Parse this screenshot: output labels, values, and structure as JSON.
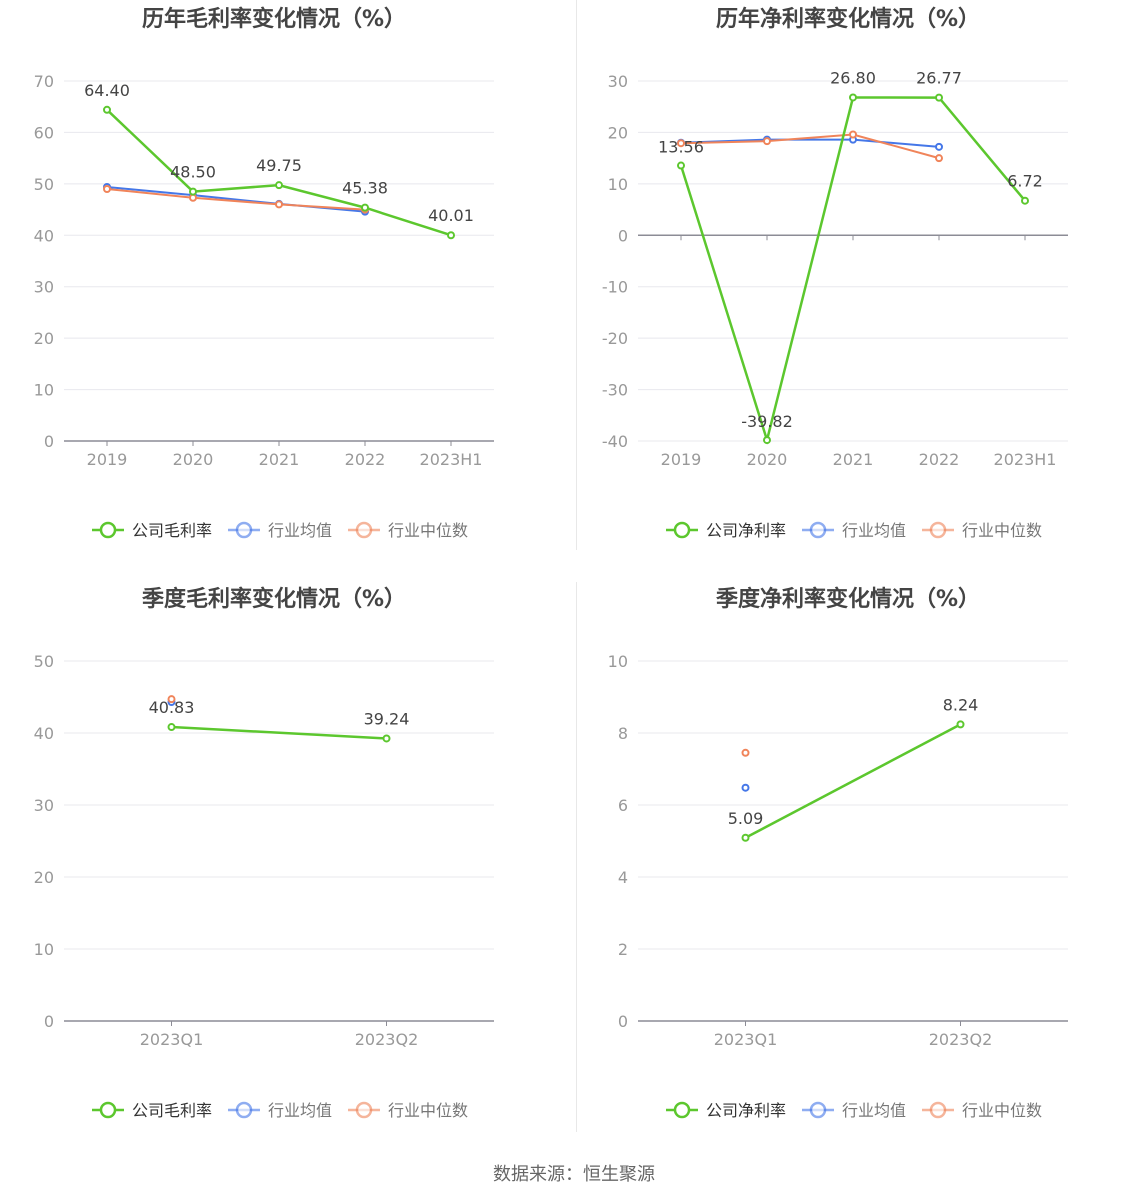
{
  "source_text": "数据来源：恒生聚源",
  "colors": {
    "company": "#5cc72e",
    "avg": "#4577e8",
    "median": "#f0845a",
    "grid": "#e8e8ee",
    "axis": "#8c8c96",
    "tick": "#999999",
    "label": "#444444",
    "title": "#444444"
  },
  "chart_data": [
    {
      "type": "line",
      "title": "历年毛利率变化情况（%）",
      "categories": [
        "2019",
        "2020",
        "2021",
        "2022",
        "2023H1"
      ],
      "ylim": [
        0,
        70
      ],
      "yticks": [
        0,
        10,
        20,
        30,
        40,
        50,
        60,
        70
      ],
      "legend_position": "bottom",
      "series": [
        {
          "name": "公司毛利率",
          "key": "company",
          "values": [
            64.4,
            48.5,
            49.75,
            45.38,
            40.01
          ],
          "labels": [
            "64.40",
            "48.50",
            "49.75",
            "45.38",
            "40.01"
          ]
        },
        {
          "name": "行业均值",
          "key": "avg",
          "values": [
            49.4,
            47.8,
            46.1,
            44.6,
            null
          ]
        },
        {
          "name": "行业中位数",
          "key": "median",
          "values": [
            49.0,
            47.3,
            46.0,
            45.0,
            null
          ]
        }
      ]
    },
    {
      "type": "line",
      "title": "历年净利率变化情况（%）",
      "categories": [
        "2019",
        "2020",
        "2021",
        "2022",
        "2023H1"
      ],
      "ylim": [
        -40,
        30
      ],
      "yticks": [
        -40,
        -30,
        -20,
        -10,
        0,
        10,
        20,
        30
      ],
      "legend_position": "bottom",
      "series": [
        {
          "name": "公司净利率",
          "key": "company",
          "values": [
            13.56,
            -39.82,
            26.8,
            26.77,
            6.72
          ],
          "labels": [
            "13.56",
            "-39.82",
            "26.80",
            "26.77",
            "6.72"
          ]
        },
        {
          "name": "行业均值",
          "key": "avg",
          "values": [
            18.0,
            18.6,
            18.6,
            17.2,
            null
          ]
        },
        {
          "name": "行业中位数",
          "key": "median",
          "values": [
            17.9,
            18.3,
            19.6,
            15.0,
            null
          ]
        }
      ]
    },
    {
      "type": "line",
      "title": "季度毛利率变化情况（%）",
      "categories": [
        "2023Q1",
        "2023Q2"
      ],
      "ylim": [
        0,
        50
      ],
      "yticks": [
        0,
        10,
        20,
        30,
        40,
        50
      ],
      "legend_position": "bottom",
      "series": [
        {
          "name": "公司毛利率",
          "key": "company",
          "values": [
            40.83,
            39.24
          ],
          "labels": [
            "40.83",
            "39.24"
          ]
        },
        {
          "name": "行业均值",
          "key": "avg",
          "values": [
            44.3,
            null
          ]
        },
        {
          "name": "行业中位数",
          "key": "median",
          "values": [
            44.7,
            null
          ]
        }
      ]
    },
    {
      "type": "line",
      "title": "季度净利率变化情况（%）",
      "categories": [
        "2023Q1",
        "2023Q2"
      ],
      "ylim": [
        0,
        10
      ],
      "yticks": [
        0,
        2,
        4,
        6,
        8,
        10
      ],
      "legend_position": "bottom",
      "series": [
        {
          "name": "公司净利率",
          "key": "company",
          "values": [
            5.09,
            8.24
          ],
          "labels": [
            "5.09",
            "8.24"
          ]
        },
        {
          "name": "行业均值",
          "key": "avg",
          "values": [
            6.48,
            null
          ]
        },
        {
          "name": "行业中位数",
          "key": "median",
          "values": [
            7.45,
            null
          ]
        }
      ]
    }
  ]
}
